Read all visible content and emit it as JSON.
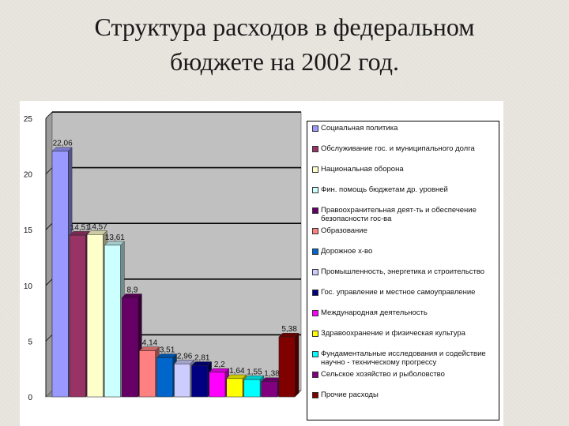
{
  "slide": {
    "title_line1": "Структура расходов в федеральном",
    "title_line2": "бюджете на 2002 год."
  },
  "chart_data": {
    "type": "bar",
    "ylim": [
      0,
      25
    ],
    "yticks": [
      0,
      5,
      10,
      15,
      20,
      25
    ],
    "grid": "horizontal",
    "legend_placement": "right",
    "categories": [
      "Социальная политика",
      "Обслуживание гос. и муниципального долга",
      "Национальная оборона",
      "Фин. помощь бюджетам др. уровней",
      "Правоохранительная деят-ть и обеспечение безопасности гос-ва",
      "Образование",
      "Дорожное х-во",
      "Промышленность, энергетика и строительство",
      "Гос. управление и местное самоуправление",
      "Международная деятельность",
      "Здравоохранение и физическая культура",
      "Фундаментальные исследования и содействие научно - техническому прогрессу",
      "Сельское хозяйство и рыболовство",
      "Прочие расходы"
    ],
    "values": [
      22.06,
      14.51,
      14.57,
      13.61,
      8.9,
      4.14,
      3.51,
      2.96,
      2.81,
      2.2,
      1.64,
      1.55,
      1.38,
      5.38
    ],
    "value_labels": [
      "22,06",
      "14,51",
      "14,57",
      "13,61",
      "8,9",
      "4,14",
      "3,51",
      "2,96",
      "2,81",
      "2,2",
      "1,64",
      "1,55",
      "1,38",
      "5,38"
    ],
    "colors": [
      "#9999ff",
      "#993366",
      "#ffffcc",
      "#ccffff",
      "#660066",
      "#ff8080",
      "#0066cc",
      "#ccccff",
      "#000080",
      "#ff00ff",
      "#ffff00",
      "#00ffff",
      "#800080",
      "#800000"
    ]
  }
}
